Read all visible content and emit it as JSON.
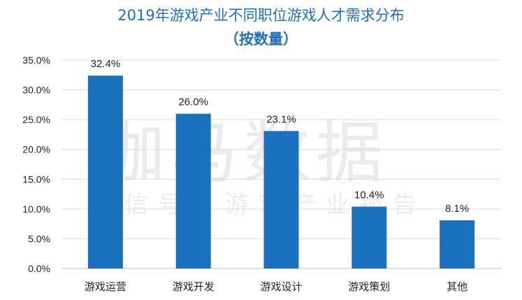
{
  "title": "2019年游戏产业不同职位游戏人才需求分布",
  "subtitle": "（按数量）",
  "watermark": {
    "main": "伽马数据",
    "sub": "微信号：游戏产业报告"
  },
  "colors": {
    "bar": "#1a72bf",
    "title": "#2170b8",
    "grid": "#d9d9d9"
  },
  "chart_data": {
    "type": "bar",
    "title": "2019年游戏产业不同职位游戏人才需求分布",
    "subtitle": "（按数量）",
    "categories": [
      "游戏运营",
      "游戏开发",
      "游戏设计",
      "游戏策划",
      "其他"
    ],
    "values": [
      32.4,
      26.0,
      23.1,
      10.4,
      8.1
    ],
    "value_labels": [
      "32.4%",
      "26.0%",
      "23.1%",
      "10.4%",
      "8.1%"
    ],
    "ylim": [
      0,
      35
    ],
    "yticks": [
      0,
      5,
      10,
      15,
      20,
      25,
      30,
      35
    ],
    "ytick_labels": [
      "0.0%",
      "5.0%",
      "10.0%",
      "15.0%",
      "20.0%",
      "25.0%",
      "30.0%",
      "35.0%"
    ],
    "xlabel": "",
    "ylabel": "",
    "grid": true,
    "legend": "none"
  }
}
